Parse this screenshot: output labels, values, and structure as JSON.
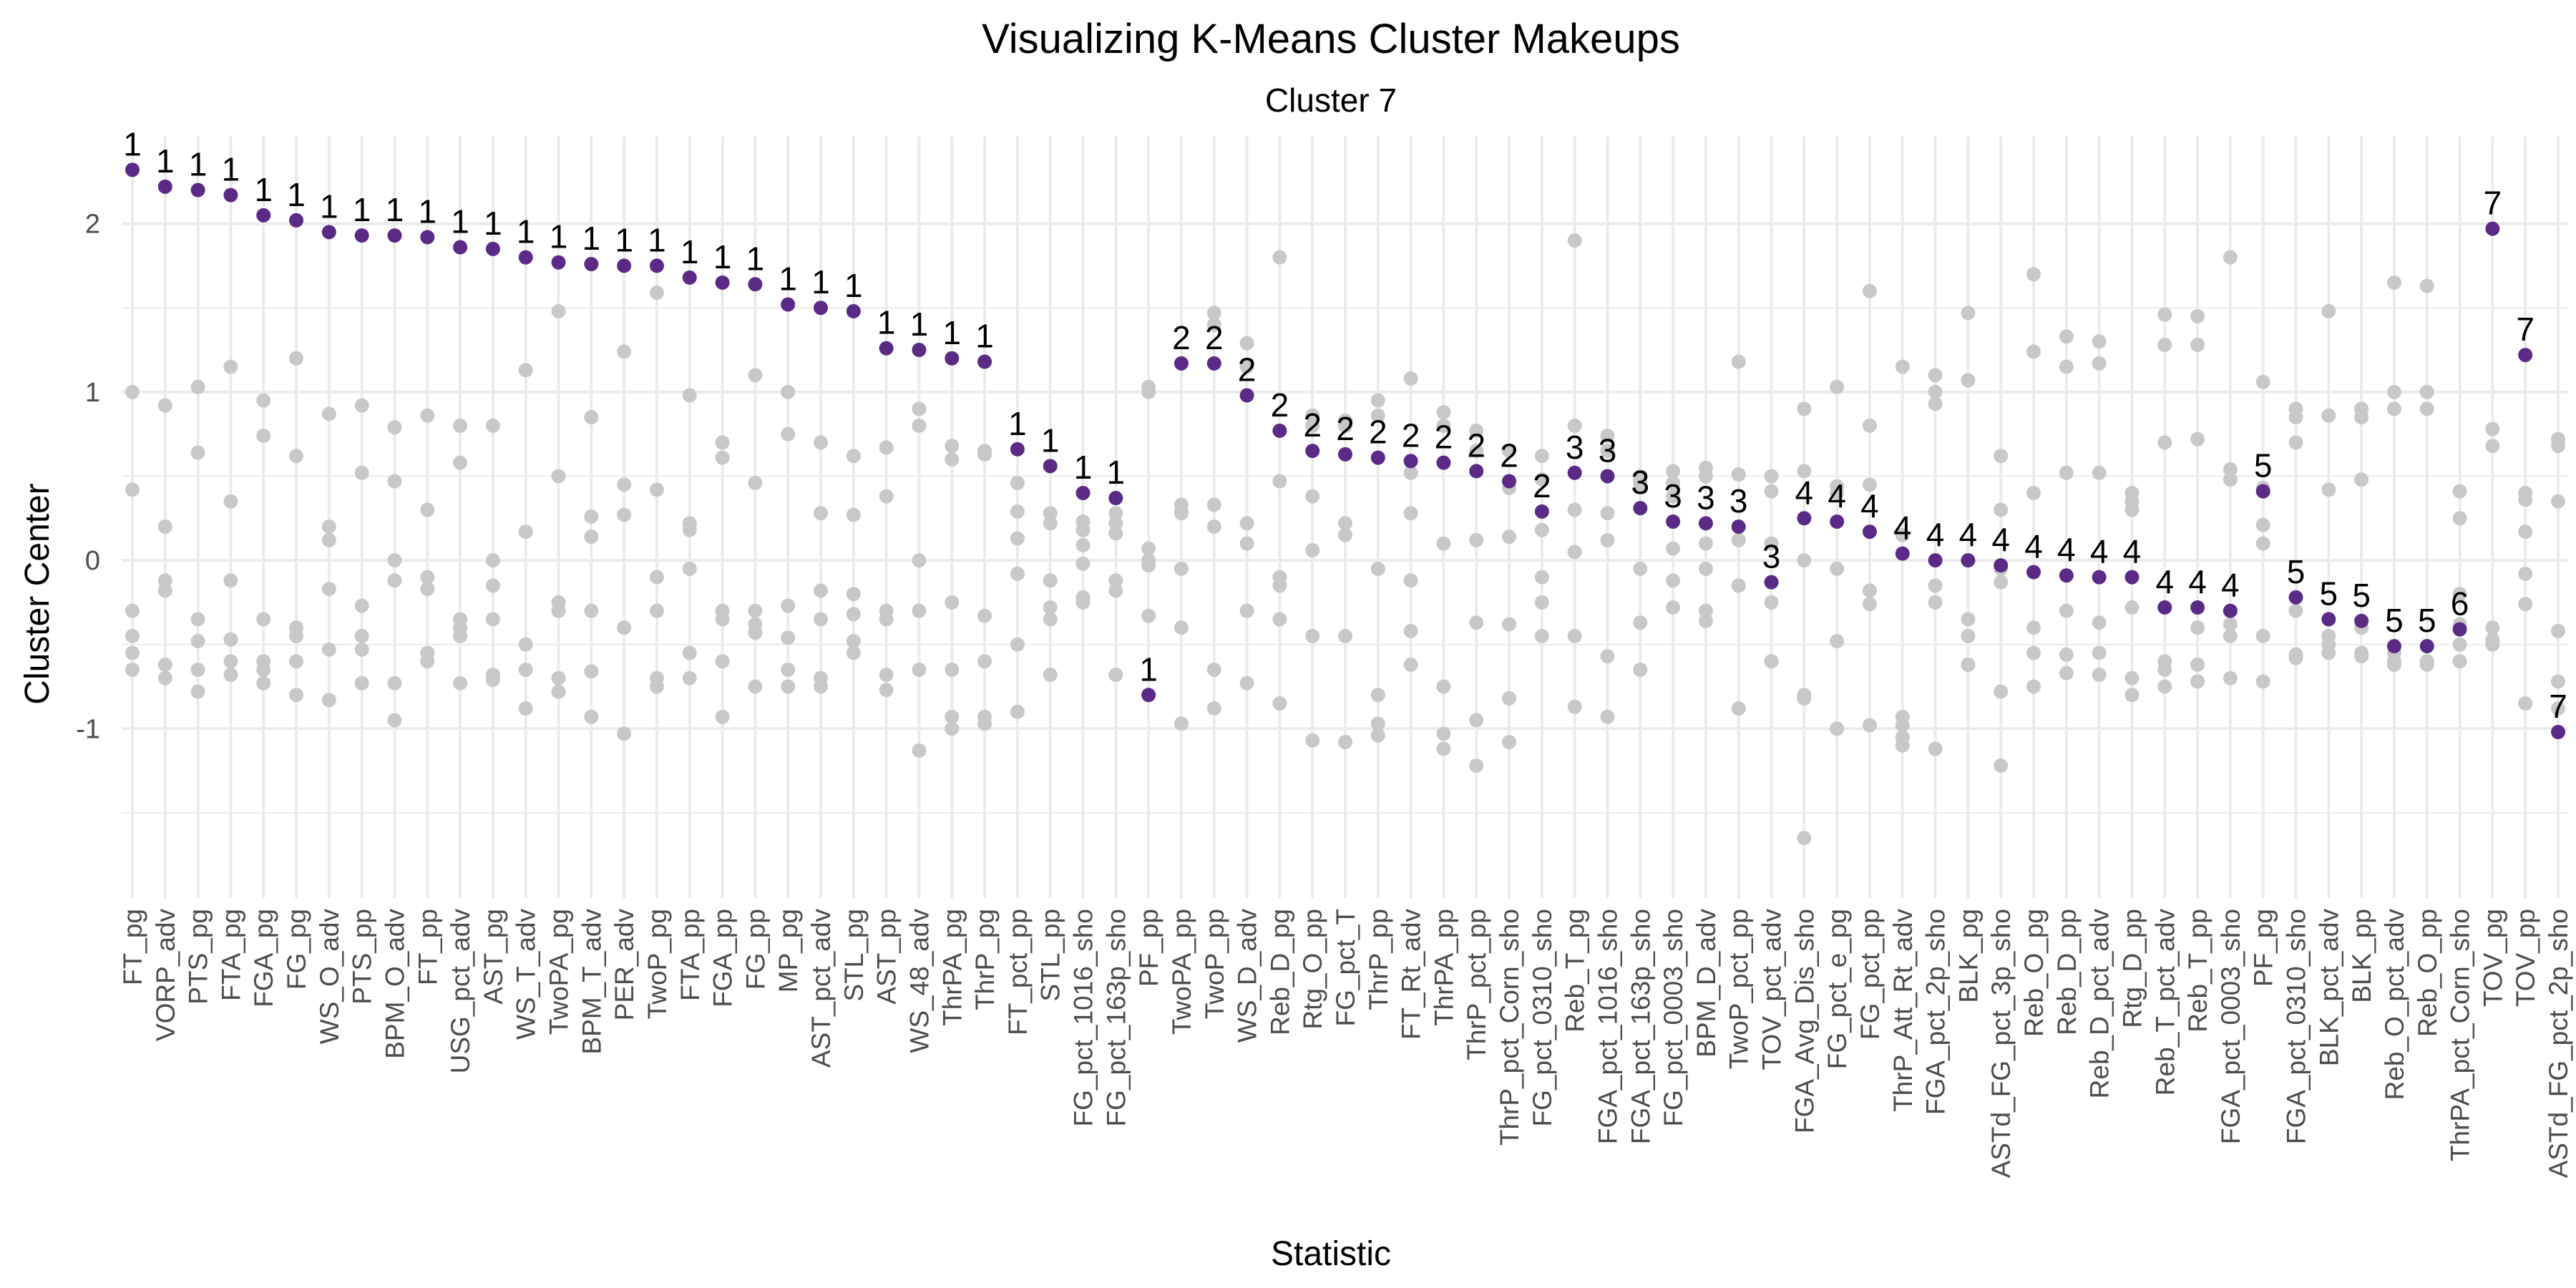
{
  "chart_data": {
    "type": "scatter",
    "title": "Visualizing K-Means Cluster Makeups",
    "subtitle": "Cluster 7",
    "xlabel": "Statistic",
    "ylabel": "Cluster Center",
    "ylim": [
      -1.9,
      2.5
    ],
    "yticks": [
      -1,
      0,
      1,
      2
    ],
    "grid": true,
    "legend": "none",
    "colors": {
      "highlight": "#5b2a86",
      "background_points": "#c8c8c8",
      "grid": "#ebebeb"
    },
    "categories": [
      "FT_pg",
      "VORP_adv",
      "PTS_pg",
      "FTA_pg",
      "FGA_pg",
      "FG_pg",
      "WS_O_adv",
      "PTS_pp",
      "BPM_O_adv",
      "FT_pp",
      "USG_pct_adv",
      "AST_pg",
      "WS_T_adv",
      "TwoPA_pg",
      "BPM_T_adv",
      "PER_adv",
      "TwoP_pg",
      "FTA_pp",
      "FGA_pp",
      "FG_pp",
      "MP_pg",
      "AST_pct_adv",
      "STL_pg",
      "AST_pp",
      "WS_48_adv",
      "ThrPA_pg",
      "ThrP_pg",
      "FT_pct_pp",
      "STL_pp",
      "FG_pct_1016_sho",
      "FG_pct_163p_sho",
      "PF_pp",
      "TwoPA_pp",
      "TwoP_pp",
      "WS_D_adv",
      "Reb_D_pg",
      "Rtg_O_pp",
      "FG_pct_T",
      "ThrP_pp",
      "FT_Rt_adv",
      "ThrPA_pp",
      "ThrP_pct_pp",
      "ThrP_pct_Corn_sho",
      "FG_pct_0310_sho",
      "Reb_T_pg",
      "FGA_pct_1016_sho",
      "FGA_pct_163p_sho",
      "FG_pct_0003_sho",
      "BPM_D_adv",
      "TwoP_pct_pp",
      "TOV_pct_adv",
      "FGA_Avg_Dis_sho",
      "FG_pct_e_pg",
      "FG_pct_pp",
      "ThrP_Att_Rt_adv",
      "FGA_pct_2p_sho",
      "BLK_pg",
      "ASTd_FG_pct_3p_sho",
      "Reb_O_pg",
      "Reb_D_pp",
      "Reb_D_pct_adv",
      "Rtg_D_pp",
      "Reb_T_pct_adv",
      "Reb_T_pp",
      "FGA_pct_0003_sho",
      "PF_pg",
      "FGA_pct_0310_sho",
      "BLK_pct_adv",
      "BLK_pp",
      "Reb_O_pct_adv",
      "Reb_O_pp",
      "ThrPA_pct_Corn_sho",
      "TOV_pg",
      "TOV_pp",
      "ASTd_FG_pct_2p_sho"
    ],
    "highlight_series": {
      "name": "Cluster 7",
      "values": [
        2.32,
        2.22,
        2.2,
        2.17,
        2.05,
        2.02,
        1.95,
        1.93,
        1.93,
        1.92,
        1.86,
        1.85,
        1.8,
        1.77,
        1.76,
        1.75,
        1.75,
        1.68,
        1.65,
        1.64,
        1.52,
        1.5,
        1.48,
        1.26,
        1.25,
        1.2,
        1.18,
        0.66,
        0.56,
        0.4,
        0.37,
        -0.8,
        1.17,
        1.17,
        0.98,
        0.77,
        0.65,
        0.63,
        0.61,
        0.59,
        0.58,
        0.53,
        0.47,
        0.29,
        0.52,
        0.5,
        0.31,
        0.23,
        0.22,
        0.2,
        -0.13,
        0.25,
        0.23,
        0.17,
        0.04,
        0.0,
        0.0,
        -0.03,
        -0.07,
        -0.09,
        -0.1,
        -0.1,
        -0.28,
        -0.28,
        -0.3,
        0.41,
        -0.22,
        -0.35,
        -0.36,
        -0.51,
        -0.51,
        -0.41,
        1.97,
        1.22,
        -1.02
      ],
      "labels": [
        "1",
        "1",
        "1",
        "1",
        "1",
        "1",
        "1",
        "1",
        "1",
        "1",
        "1",
        "1",
        "1",
        "1",
        "1",
        "1",
        "1",
        "1",
        "1",
        "1",
        "1",
        "1",
        "1",
        "1",
        "1",
        "1",
        "1",
        "1",
        "1",
        "1",
        "1",
        "1",
        "2",
        "2",
        "2",
        "2",
        "2",
        "2",
        "2",
        "2",
        "2",
        "2",
        "2",
        "2",
        "3",
        "3",
        "3",
        "3",
        "3",
        "3",
        "3",
        "4",
        "4",
        "4",
        "4",
        "4",
        "4",
        "4",
        "4",
        "4",
        "4",
        "4",
        "4",
        "4",
        "4",
        "5",
        "5",
        "5",
        "5",
        "5",
        "5",
        "6",
        "7",
        "7",
        "7"
      ]
    },
    "other_clusters": [
      [
        1.0,
        0.42,
        -0.3,
        -0.45,
        -0.55,
        -0.65
      ],
      [
        0.92,
        0.2,
        -0.12,
        -0.18,
        -0.62,
        -0.7
      ],
      [
        1.03,
        0.64,
        -0.35,
        -0.48,
        -0.65,
        -0.78
      ],
      [
        1.15,
        0.35,
        -0.12,
        -0.47,
        -0.6,
        -0.68
      ],
      [
        0.95,
        0.74,
        -0.35,
        -0.6,
        -0.65,
        -0.73
      ],
      [
        1.2,
        0.62,
        -0.4,
        -0.45,
        -0.6,
        -0.8
      ],
      [
        0.87,
        0.2,
        0.12,
        -0.17,
        -0.53,
        -0.83
      ],
      [
        0.92,
        0.52,
        -0.27,
        -0.45,
        -0.53,
        -0.73
      ],
      [
        0.79,
        0.47,
        0.0,
        -0.12,
        -0.73,
        -0.95
      ],
      [
        0.86,
        0.3,
        -0.1,
        -0.17,
        -0.55,
        -0.6
      ],
      [
        0.8,
        0.58,
        -0.35,
        -0.4,
        -0.45,
        -0.73
      ],
      [
        0.8,
        0.0,
        -0.15,
        -0.35,
        -0.68,
        -0.71
      ],
      [
        1.13,
        0.17,
        0.17,
        -0.5,
        -0.65,
        -0.88
      ],
      [
        1.48,
        0.5,
        -0.25,
        -0.3,
        -0.7,
        -0.78
      ],
      [
        0.85,
        0.26,
        0.14,
        -0.3,
        -0.66,
        -0.93
      ],
      [
        1.24,
        0.45,
        0.27,
        -0.4,
        -0.4,
        -1.03
      ],
      [
        1.59,
        0.42,
        -0.1,
        -0.3,
        -0.7,
        -0.75
      ],
      [
        0.98,
        0.22,
        0.18,
        -0.05,
        -0.55,
        -0.7
      ],
      [
        0.7,
        0.61,
        -0.3,
        -0.35,
        -0.6,
        -0.93
      ],
      [
        1.1,
        0.46,
        -0.3,
        -0.38,
        -0.43,
        -0.75
      ],
      [
        1.0,
        0.75,
        -0.27,
        -0.46,
        -0.65,
        -0.75
      ],
      [
        0.7,
        0.28,
        -0.18,
        -0.35,
        -0.7,
        -0.75
      ],
      [
        0.62,
        0.27,
        -0.2,
        -0.32,
        -0.48,
        -0.55
      ],
      [
        0.67,
        0.38,
        -0.3,
        -0.35,
        -0.68,
        -0.77
      ],
      [
        0.9,
        0.8,
        0.0,
        -0.3,
        -0.65,
        -1.13
      ],
      [
        0.68,
        0.6,
        -0.25,
        -0.65,
        -0.93,
        -1.0
      ],
      [
        0.65,
        0.63,
        -0.33,
        -0.6,
        -0.93,
        -0.97
      ],
      [
        0.46,
        0.29,
        0.13,
        -0.08,
        -0.5,
        -0.9
      ],
      [
        0.28,
        0.22,
        -0.12,
        -0.28,
        -0.35,
        -0.68
      ],
      [
        0.23,
        0.18,
        0.09,
        -0.02,
        -0.22,
        -0.25
      ],
      [
        0.28,
        0.22,
        0.16,
        -0.12,
        -0.18,
        -0.68
      ],
      [
        1.03,
        1.0,
        0.07,
        0.0,
        -0.03,
        -0.33
      ],
      [
        0.33,
        0.29,
        0.28,
        -0.05,
        -0.4,
        -0.97
      ],
      [
        1.47,
        1.4,
        0.33,
        0.2,
        -0.65,
        -0.88
      ],
      [
        1.29,
        1.15,
        0.22,
        0.1,
        -0.3,
        -0.73
      ],
      [
        1.8,
        0.47,
        -0.1,
        -0.15,
        -0.35,
        -0.85
      ],
      [
        0.86,
        0.8,
        0.38,
        0.06,
        -0.45,
        -1.07
      ],
      [
        0.83,
        0.8,
        0.22,
        0.15,
        -0.45,
        -1.08
      ],
      [
        0.95,
        0.86,
        -0.05,
        -0.8,
        -0.97,
        -1.04
      ],
      [
        1.08,
        0.52,
        0.28,
        -0.12,
        -0.42,
        -0.62
      ],
      [
        0.88,
        0.8,
        0.1,
        -0.75,
        -1.03,
        -1.12
      ],
      [
        0.77,
        0.65,
        0.12,
        -0.37,
        -0.95,
        -1.22
      ],
      [
        0.65,
        0.43,
        0.14,
        -0.38,
        -0.82,
        -1.08
      ],
      [
        0.62,
        0.48,
        0.18,
        -0.1,
        -0.25,
        -0.45
      ],
      [
        1.9,
        0.8,
        0.3,
        0.05,
        -0.45,
        -0.87
      ],
      [
        0.74,
        0.65,
        0.28,
        0.12,
        -0.57,
        -0.93
      ],
      [
        0.5,
        0.47,
        0.44,
        -0.05,
        -0.37,
        -0.65
      ],
      [
        0.53,
        0.46,
        0.38,
        0.07,
        -0.28,
        -0.12
      ],
      [
        0.55,
        0.5,
        0.1,
        -0.05,
        -0.3,
        -0.36
      ],
      [
        1.18,
        0.51,
        0.12,
        -0.15,
        -0.15,
        -0.88
      ],
      [
        0.5,
        0.41,
        0.1,
        -0.25,
        -0.6,
        -0.6
      ],
      [
        0.9,
        0.53,
        -0.8,
        -0.82,
        -1.65,
        -0.0
      ],
      [
        1.03,
        0.44,
        0.4,
        -0.05,
        -0.48,
        -1.0
      ],
      [
        1.6,
        0.8,
        0.45,
        -0.18,
        -0.26,
        -0.98
      ],
      [
        1.15,
        0.15,
        -0.93,
        -0.98,
        -1.1,
        -1.05
      ],
      [
        1.1,
        1.0,
        0.93,
        -0.15,
        -0.25,
        -1.12
      ],
      [
        1.47,
        1.07,
        -0.35,
        -0.45,
        -0.62,
        -0.62
      ],
      [
        0.62,
        0.3,
        -0.05,
        -0.13,
        -0.78,
        -1.22
      ],
      [
        1.7,
        1.24,
        0.4,
        -0.4,
        -0.55,
        -0.75
      ],
      [
        1.33,
        1.15,
        0.52,
        -0.3,
        -0.56,
        -0.67
      ],
      [
        1.3,
        1.17,
        0.52,
        -0.37,
        -0.55,
        -0.68
      ],
      [
        0.4,
        0.35,
        0.3,
        -0.28,
        -0.7,
        -0.8
      ],
      [
        1.46,
        1.28,
        0.7,
        -0.6,
        -0.65,
        -0.75
      ],
      [
        1.45,
        1.28,
        0.72,
        -0.4,
        -0.62,
        -0.72
      ],
      [
        1.8,
        0.54,
        0.48,
        -0.38,
        -0.45,
        -0.7
      ],
      [
        1.06,
        0.43,
        0.21,
        0.1,
        -0.45,
        -0.72
      ],
      [
        0.9,
        0.85,
        0.7,
        -0.3,
        -0.56,
        -0.58
      ],
      [
        1.48,
        0.86,
        0.42,
        -0.45,
        -0.5,
        -0.55
      ],
      [
        0.9,
        0.85,
        0.48,
        -0.4,
        -0.57,
        -0.55
      ],
      [
        1.65,
        1.0,
        0.9,
        -0.55,
        -0.6,
        -0.62
      ],
      [
        1.63,
        1.0,
        0.9,
        -0.6,
        -0.6,
        -0.62
      ],
      [
        0.41,
        0.25,
        -0.2,
        -0.38,
        -0.5,
        -0.6
      ],
      [
        0.78,
        0.68,
        -0.4,
        -0.47,
        -0.48,
        -0.5
      ],
      [
        0.4,
        0.36,
        0.17,
        -0.08,
        -0.26,
        -0.85
      ],
      [
        0.72,
        0.68,
        0.35,
        -0.42,
        -0.72,
        -0.88
      ]
    ]
  }
}
